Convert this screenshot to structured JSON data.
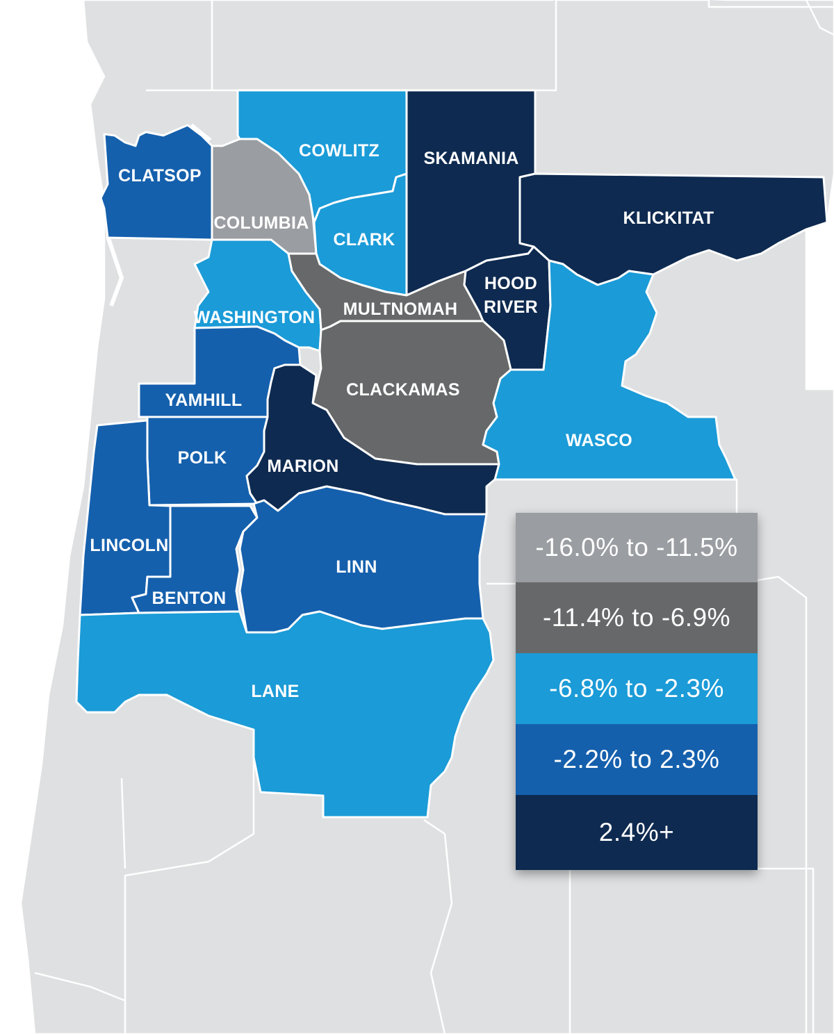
{
  "colors": {
    "bin_1": "#9a9da1",
    "bin_2": "#676869",
    "bin_3": "#1b9bd7",
    "bin_4": "#1560ad",
    "bin_5": "#0e2a50",
    "background_land": "#dfe0e1",
    "water": "#ffffff"
  },
  "legend": [
    {
      "label": "-16.0% to -11.5%",
      "bin": "bin_1"
    },
    {
      "label": "-11.4% to -6.9%",
      "bin": "bin_2"
    },
    {
      "label": "-6.8% to -2.3%",
      "bin": "bin_3"
    },
    {
      "label": "-2.2% to 2.3%",
      "bin": "bin_4"
    },
    {
      "label": "2.4%+",
      "bin": "bin_5"
    }
  ],
  "counties": [
    {
      "id": "clatsop",
      "name": "CLATSOP",
      "bin": "bin_4"
    },
    {
      "id": "columbia",
      "name": "COLUMBIA",
      "bin": "bin_1"
    },
    {
      "id": "cowlitz",
      "name": "COWLITZ",
      "bin": "bin_3"
    },
    {
      "id": "clark",
      "name": "CLARK",
      "bin": "bin_3"
    },
    {
      "id": "skamania",
      "name": "SKAMANIA",
      "bin": "bin_5"
    },
    {
      "id": "klickitat",
      "name": "KLICKITAT",
      "bin": "bin_5"
    },
    {
      "id": "washington",
      "name": "WASHINGTON",
      "bin": "bin_3"
    },
    {
      "id": "multnomah",
      "name": "MULTNOMAH",
      "bin": "bin_2"
    },
    {
      "id": "hood-river",
      "name": "HOOD",
      "name_line2": "RIVER",
      "bin": "bin_5"
    },
    {
      "id": "clackamas",
      "name": "CLACKAMAS",
      "bin": "bin_2"
    },
    {
      "id": "yamhill",
      "name": "YAMHILL",
      "bin": "bin_4"
    },
    {
      "id": "wasco",
      "name": "WASCO",
      "bin": "bin_3"
    },
    {
      "id": "polk",
      "name": "POLK",
      "bin": "bin_4"
    },
    {
      "id": "marion",
      "name": "MARION",
      "bin": "bin_5"
    },
    {
      "id": "lincoln",
      "name": "LINCOLN",
      "bin": "bin_4"
    },
    {
      "id": "benton",
      "name": "BENTON",
      "bin": "bin_4"
    },
    {
      "id": "linn",
      "name": "LINN",
      "bin": "bin_4"
    },
    {
      "id": "lane",
      "name": "LANE",
      "bin": "bin_3"
    }
  ]
}
